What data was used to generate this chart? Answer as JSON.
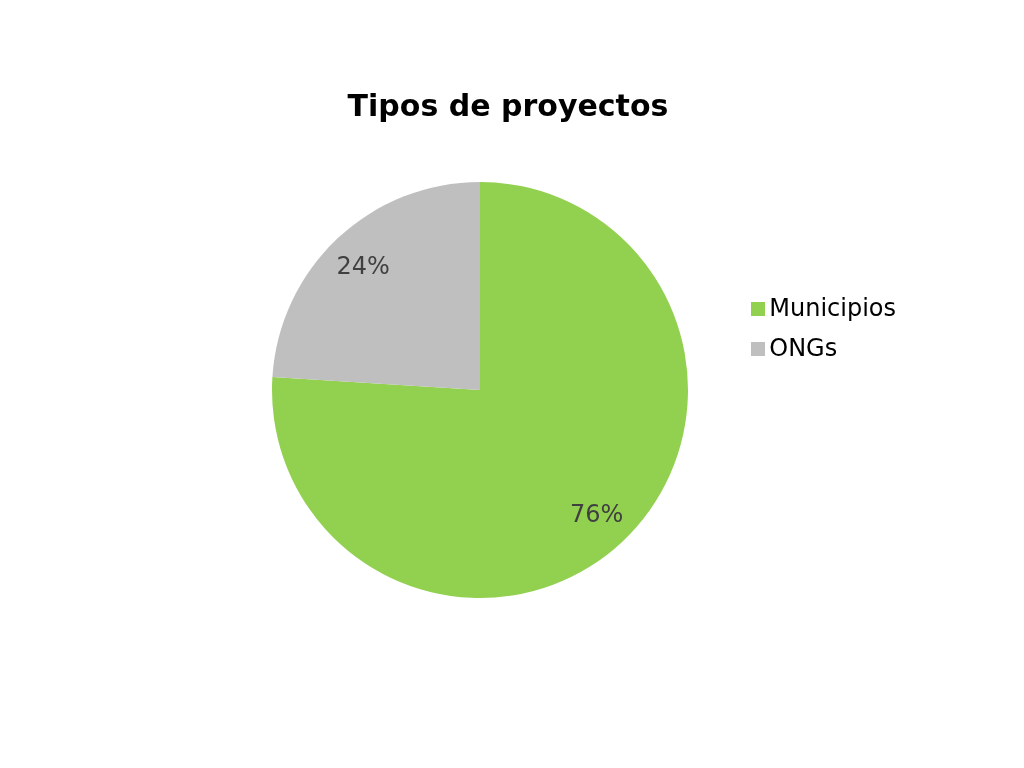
{
  "chart_data": {
    "type": "pie",
    "title": "Tipos de proyectos",
    "categories": [
      "Municipios",
      "ONGs"
    ],
    "values": [
      76,
      24
    ],
    "colors": [
      "#92d050",
      "#bfbfbf"
    ],
    "value_labels": [
      "76%",
      "24%"
    ],
    "legend": "right"
  }
}
